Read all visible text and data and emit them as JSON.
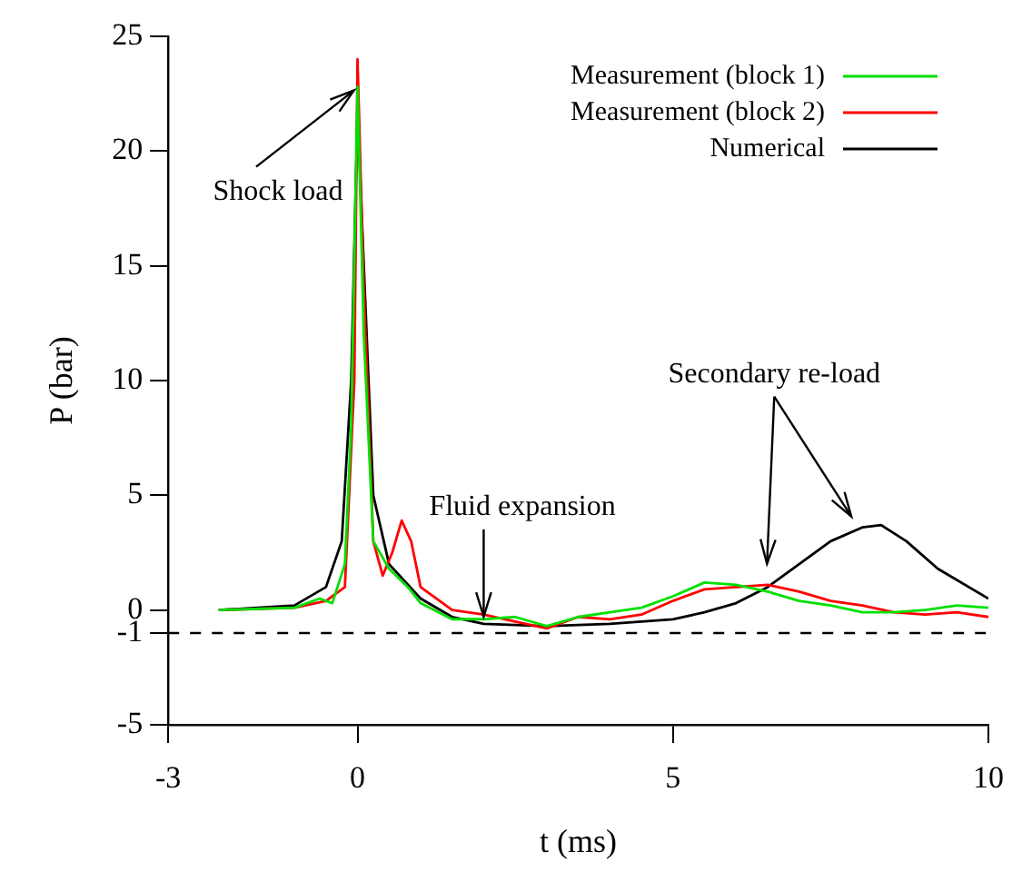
{
  "chart_data": {
    "type": "line",
    "xlabel": "t (ms)",
    "ylabel": "P (bar)",
    "xlim": [
      -3,
      10
    ],
    "xticks": [
      -3,
      0,
      5,
      10
    ],
    "ylim": [
      -5,
      25
    ],
    "yticks": [
      -5,
      -1,
      0,
      5,
      10,
      15,
      20,
      25
    ],
    "grid": false,
    "legend": "top right",
    "marker": "none",
    "line_style": "solid",
    "series": [
      {
        "name": "Measurement (block 1)",
        "color": "#00e000",
        "x": [
          -2.2,
          -1,
          -0.6,
          -0.4,
          -0.2,
          -0.1,
          0,
          0.1,
          0.25,
          0.5,
          0.8,
          1,
          1.5,
          2,
          2.5,
          3,
          3.5,
          4,
          4.5,
          5,
          5.5,
          6,
          6.5,
          7,
          7.5,
          8,
          8.5,
          9,
          9.5,
          10
        ],
        "values": [
          0,
          0.1,
          0.5,
          0.3,
          2,
          8,
          22.8,
          12,
          3,
          1.8,
          1,
          0.3,
          -0.4,
          -0.4,
          -0.3,
          -0.7,
          -0.3,
          -0.1,
          0.1,
          0.6,
          1.2,
          1.1,
          0.8,
          0.4,
          0.2,
          -0.1,
          -0.1,
          0,
          0.2,
          0.1
        ]
      },
      {
        "name": "Measurement (block 2)",
        "color": "#ff0000",
        "x": [
          -2.2,
          -1,
          -0.5,
          -0.2,
          -0.05,
          0,
          0.1,
          0.25,
          0.4,
          0.55,
          0.7,
          0.85,
          1,
          1.5,
          2,
          2.5,
          3,
          3.5,
          4,
          4.5,
          5,
          5.5,
          6,
          6.5,
          7,
          7.5,
          8,
          8.5,
          9,
          9.5,
          10
        ],
        "values": [
          0,
          0.1,
          0.4,
          1,
          10,
          24,
          14,
          3,
          1.5,
          2.5,
          3.9,
          3,
          1,
          0,
          -0.2,
          -0.5,
          -0.8,
          -0.3,
          -0.4,
          -0.2,
          0.4,
          0.9,
          1,
          1.1,
          0.8,
          0.4,
          0.2,
          -0.1,
          -0.2,
          -0.1,
          -0.3
        ]
      },
      {
        "name": "Numerical",
        "color": "#000000",
        "x": [
          -2.2,
          -1,
          -0.5,
          -0.25,
          -0.1,
          0,
          0.1,
          0.25,
          0.5,
          1,
          1.5,
          2,
          3,
          4,
          5,
          5.5,
          6,
          6.5,
          7,
          7.5,
          8,
          8.3,
          8.7,
          9.2,
          10
        ],
        "values": [
          0,
          0.2,
          1,
          3,
          10,
          21.7,
          15,
          5,
          2,
          0.5,
          -0.3,
          -0.6,
          -0.7,
          -0.6,
          -0.4,
          -0.1,
          0.3,
          1,
          2,
          3,
          3.6,
          3.7,
          3,
          1.8,
          0.5
        ]
      }
    ],
    "ref_lines": [
      {
        "axis": "y",
        "value": -1,
        "color": "#000000",
        "line_style": "dashed"
      }
    ],
    "annotations": [
      {
        "text": "Shock load",
        "x": 0,
        "y": 22.8
      },
      {
        "text": "Fluid expansion",
        "x": 2,
        "y": -0.6
      },
      {
        "text": "Secondary re-load",
        "x": 8,
        "y": 3.6
      }
    ]
  }
}
